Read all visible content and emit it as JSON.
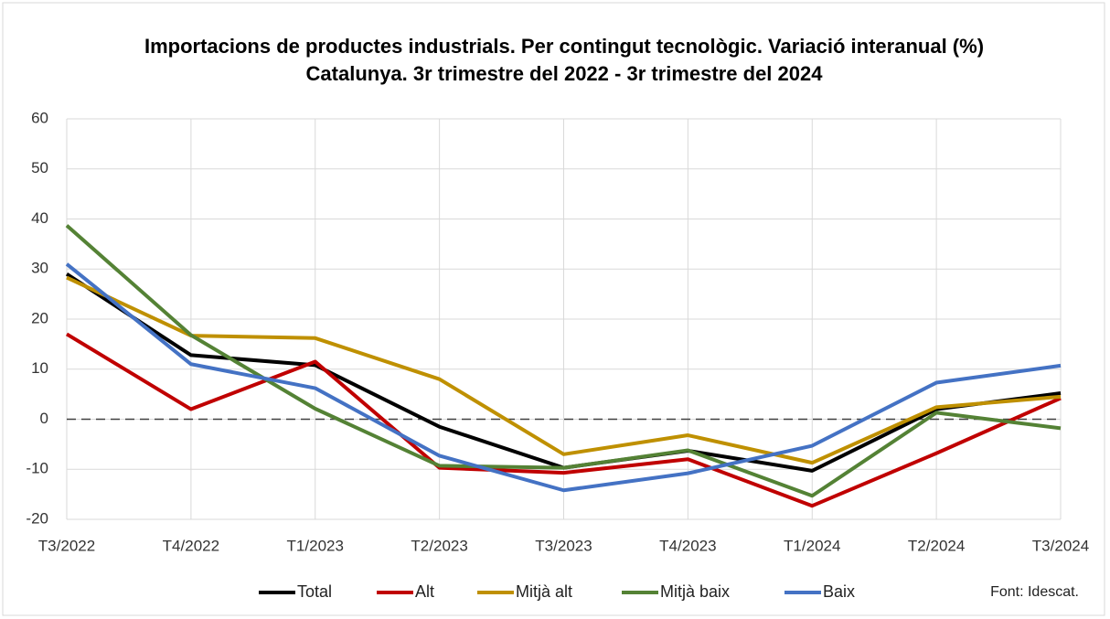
{
  "chart_data": {
    "type": "line",
    "title": "Importacions de productes industrials. Per contingut tecnològic. Variació interanual (%)",
    "subtitle": "Catalunya. 3r trimestre del 2022 - 3r trimestre del 2024",
    "categories": [
      "T3/2022",
      "T4/2022",
      "T1/2023",
      "T2/2023",
      "T3/2023",
      "T4/2023",
      "T1/2024",
      "T2/2024",
      "T3/2024"
    ],
    "series": [
      {
        "name": "Total",
        "color": "#000000",
        "values": [
          29,
          12.8,
          10.8,
          -1.5,
          -9.7,
          -6.3,
          -10.3,
          2,
          5.2
        ]
      },
      {
        "name": "Alt",
        "color": "#c00000",
        "values": [
          17,
          2,
          11.5,
          -9.7,
          -10.7,
          -8,
          -17.3,
          -6.8,
          4.2
        ]
      },
      {
        "name": "Mitjà alt",
        "color": "#bf9000",
        "values": [
          28.3,
          16.7,
          16.2,
          8,
          -7,
          -3.2,
          -8.7,
          2.4,
          4.5
        ]
      },
      {
        "name": "Mitjà baix",
        "color": "#548235",
        "values": [
          38.7,
          16.8,
          2.1,
          -9.3,
          -9.7,
          -6.2,
          -15.3,
          1.3,
          -1.8
        ]
      },
      {
        "name": "Baix",
        "color": "#4472c4",
        "values": [
          31,
          11,
          6.2,
          -7.3,
          -14.2,
          -10.8,
          -5.3,
          7.3,
          10.7
        ]
      }
    ],
    "ylim": [
      -20,
      60
    ],
    "yticks": [
      -20,
      -10,
      0,
      10,
      20,
      30,
      40,
      50,
      60
    ],
    "grid": true,
    "zero_line_dashed": true,
    "legend": "bottom",
    "source": "Font: Idescat."
  }
}
